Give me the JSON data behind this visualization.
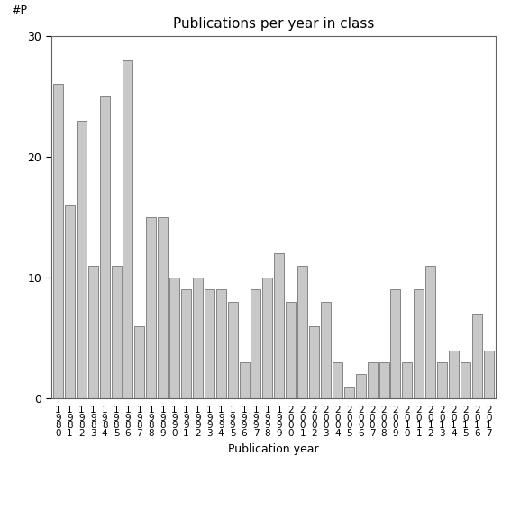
{
  "title": "Publications per year in class",
  "xlabel": "Publication year",
  "ylabel": "#P",
  "bar_color": "#c8c8c8",
  "bar_edge_color": "#606060",
  "background_color": "#ffffff",
  "ylim": [
    0,
    30
  ],
  "yticks": [
    0,
    10,
    20,
    30
  ],
  "years": [
    "1980",
    "1981",
    "1982",
    "1983",
    "1984",
    "1985",
    "1986",
    "1987",
    "1988",
    "1989",
    "1990",
    "1991",
    "1992",
    "1993",
    "1994",
    "1995",
    "1996",
    "1997",
    "1998",
    "1999",
    "2000",
    "2001",
    "2002",
    "2003",
    "2004",
    "2005",
    "2006",
    "2007",
    "2008",
    "2009",
    "2010",
    "2011",
    "2012",
    "2013",
    "2014",
    "2015",
    "2016",
    "2017"
  ],
  "values": [
    26,
    16,
    23,
    11,
    25,
    11,
    28,
    6,
    15,
    15,
    10,
    9,
    10,
    9,
    9,
    8,
    3,
    9,
    10,
    12,
    8,
    11,
    6,
    8,
    3,
    1,
    2,
    3,
    3,
    9,
    3,
    9,
    11,
    3,
    4,
    3,
    7,
    4
  ],
  "title_fontsize": 11,
  "axis_label_fontsize": 9,
  "tick_label_fontsize": 7.5,
  "ylabel_fontsize": 9
}
